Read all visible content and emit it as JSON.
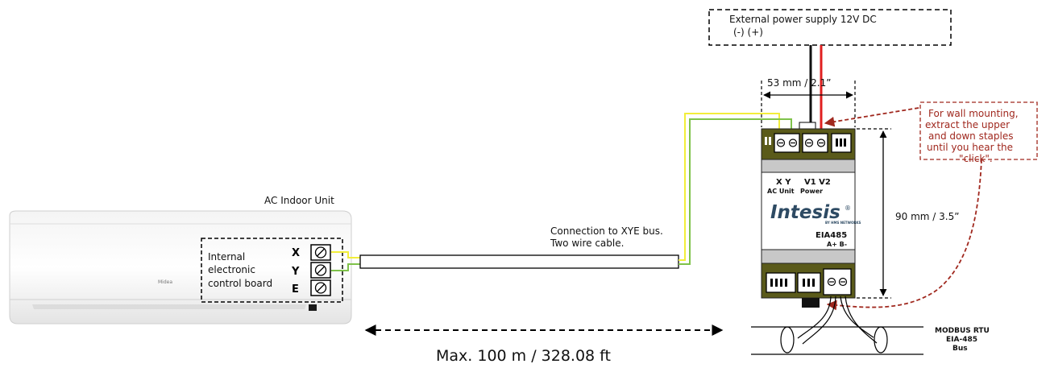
{
  "ac_unit": {
    "title": "AC Indoor Unit",
    "board_label_lines": [
      "Internal",
      "electronic",
      "control board"
    ],
    "terminals": [
      "X",
      "Y",
      "E"
    ],
    "logo": "Midea"
  },
  "cable": {
    "label_lines": [
      "Connection to XYE bus.",
      "Two wire cable."
    ],
    "max_distance": "Max. 100 m / 328.08 ft"
  },
  "power_supply": {
    "title": "External power supply 12V DC",
    "polarity": "(-) (+)"
  },
  "device": {
    "brand": "Intesis",
    "registered": "®",
    "byline": "BY HMS NETWORKS",
    "port_xy": "X Y",
    "port_xy_sub": "AC Unit",
    "port_power": "V1 V2",
    "port_power_sub": "Power",
    "model": "EIA485",
    "bus_pins": "A+  B-",
    "width_dim": "53 mm / 2.1”",
    "height_dim": "90 mm / 3.5”"
  },
  "note": {
    "lines": [
      "For wall mounting,",
      "extract the upper",
      "and down staples",
      "until you hear the",
      "\"click\"."
    ]
  },
  "modbus": {
    "lines": [
      "MODBUS RTU",
      "EIA-485",
      "Bus"
    ]
  },
  "colors": {
    "wire_yellow": "#f2ee3a",
    "wire_green": "#7fc24a",
    "wire_red": "#e02020",
    "wire_black": "#111111",
    "device_olive": "#5a5a1a",
    "device_grey": "#c8c8c8",
    "note_red": "#a0281e",
    "brand_blue": "#2d4a63"
  }
}
